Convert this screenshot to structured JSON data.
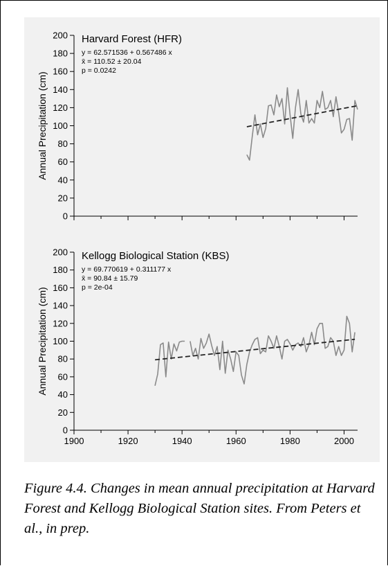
{
  "caption": "Figure 4.4.  Changes in mean annual precipitation at Harvard Forest and Kellogg Biological Station sites.  From Peters et al., in prep.",
  "chart_data": [
    {
      "type": "line",
      "title": "Harvard Forest (HFR)",
      "ylabel": "Annual Precipitation (cm)",
      "xlabel": "",
      "xlim": [
        1900,
        2005
      ],
      "ylim": [
        0,
        200
      ],
      "x_ticks": [
        1900,
        1920,
        1940,
        1960,
        1980,
        2000
      ],
      "y_ticks": [
        0,
        20,
        40,
        60,
        80,
        100,
        120,
        140,
        160,
        180,
        200
      ],
      "show_x_tick_labels": false,
      "grid": false,
      "annotations": [
        "y = 62.571536  +  0.567486 x",
        "x̄ = 110.52 ± 20.04",
        "p = 0.0242"
      ],
      "series": [
        {
          "x": [
            1964,
            1965,
            1966,
            1967,
            1968,
            1969,
            1970,
            1971,
            1972,
            1973,
            1974,
            1975,
            1976,
            1977,
            1978,
            1979,
            1980,
            1981,
            1982,
            1983,
            1984,
            1985,
            1986,
            1987,
            1988,
            1989,
            1990,
            1991,
            1992,
            1993,
            1994,
            1995,
            1996,
            1997,
            1998,
            1999,
            2000,
            2001,
            2002,
            2003,
            2004,
            2005
          ],
          "y": [
            68,
            62,
            88,
            112,
            90,
            102,
            87,
            97,
            122,
            123,
            112,
            134,
            121,
            130,
            102,
            142,
            112,
            86,
            120,
            140,
            113,
            104,
            128,
            103,
            108,
            103,
            128,
            120,
            138,
            118,
            120,
            128,
            110,
            132,
            114,
            92,
            96,
            107,
            108,
            84,
            128,
            118
          ]
        }
      ],
      "trend": {
        "slope": 0.567486,
        "intercept": 62.571536,
        "ref_year": 1900,
        "x": [
          1964,
          2005
        ]
      }
    },
    {
      "type": "line",
      "title": "Kellogg Biological Station (KBS)",
      "ylabel": "Annual Precipitation (cm)",
      "xlabel": "",
      "xlim": [
        1900,
        2005
      ],
      "ylim": [
        0,
        200
      ],
      "x_ticks": [
        1900,
        1920,
        1940,
        1960,
        1980,
        2000
      ],
      "y_ticks": [
        0,
        20,
        40,
        60,
        80,
        100,
        120,
        140,
        160,
        180,
        200
      ],
      "show_x_tick_labels": true,
      "grid": false,
      "annotations": [
        "y = 69.770619  +  0.311177 x",
        "x̄ = 90.84 ± 15.79",
        "p = 2e-04"
      ],
      "series": [
        {
          "x": [
            1930,
            1931,
            1932,
            1933,
            1934,
            1935,
            1936,
            1937,
            1938,
            1939,
            1940,
            1941
          ],
          "y": [
            50,
            63,
            96,
            98,
            60,
            99,
            80,
            97,
            89,
            99,
            100,
            100
          ]
        },
        {
          "x": [
            1943,
            1944,
            1945,
            1946,
            1947,
            1948,
            1949,
            1950,
            1951,
            1952,
            1953,
            1954,
            1955,
            1956,
            1957,
            1958,
            1959,
            1960,
            1961,
            1962,
            1963,
            1964,
            1965,
            1966,
            1967,
            1968,
            1969,
            1970,
            1971,
            1972,
            1973,
            1974,
            1975,
            1976,
            1977,
            1978,
            1979,
            1980,
            1981,
            1982,
            1983,
            1984,
            1985,
            1986,
            1987,
            1988,
            1989,
            1990,
            1991,
            1992,
            1993,
            1994,
            1995,
            1996,
            1997,
            1998,
            1999,
            2000,
            2001,
            2002,
            2003,
            2004
          ],
          "y": [
            100,
            84,
            92,
            80,
            103,
            92,
            98,
            108,
            95,
            84,
            94,
            68,
            100,
            64,
            90,
            80,
            66,
            88,
            84,
            62,
            52,
            74,
            88,
            96,
            102,
            104,
            86,
            90,
            88,
            106,
            100,
            92,
            106,
            94,
            80,
            100,
            102,
            97,
            90,
            96,
            98,
            94,
            104,
            88,
            96,
            110,
            96,
            114,
            120,
            120,
            92,
            94,
            104,
            100,
            84,
            94,
            84,
            90,
            128,
            120,
            88,
            110
          ]
        }
      ],
      "trend": {
        "slope": 0.311177,
        "intercept": 69.770619,
        "ref_year": 1900,
        "x": [
          1930,
          2004
        ]
      }
    }
  ]
}
